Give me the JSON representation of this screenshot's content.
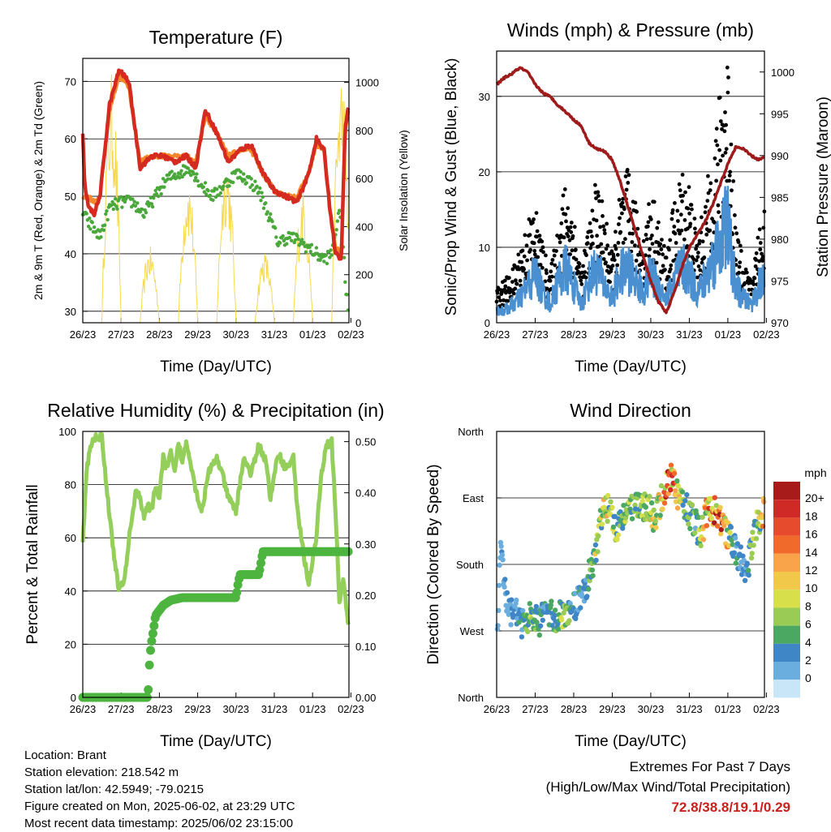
{
  "chart_data": [
    {
      "type": "line",
      "title": "Temperature (F)",
      "xlabel": "Time (Day/UTC)",
      "ylabel": "2m & 9m T (Red, Orange) & 2m Td (Green)",
      "y2label": "Solar Insolation (Yellow)",
      "x_ticks": [
        "26/23",
        "27/23",
        "28/23",
        "29/23",
        "30/23",
        "31/23",
        "01/23",
        "02/23"
      ],
      "ylim": [
        28,
        74
      ],
      "y_ticks": [
        30,
        40,
        50,
        60,
        70
      ],
      "y2lim": [
        0,
        1100
      ],
      "y2_ticks": [
        0,
        200,
        400,
        600,
        800,
        1000
      ],
      "grid": true,
      "series": [
        {
          "name": "2m T",
          "color": "#d42a20",
          "x": [
            0,
            0.05,
            0.15,
            0.3,
            0.45,
            0.7,
            0.95,
            1.2,
            1.5,
            1.8,
            2.1,
            2.4,
            2.7,
            2.95,
            3.2,
            3.5,
            3.8,
            4.1,
            4.4,
            4.7,
            5.0,
            5.3,
            5.6,
            5.9,
            6.1,
            6.3,
            6.45,
            6.6,
            6.75,
            6.85,
            6.95
          ],
          "y": [
            61,
            52,
            48,
            47,
            50,
            66,
            72,
            70,
            55,
            57,
            57,
            56,
            57,
            55,
            65,
            61,
            56,
            58,
            59,
            54,
            51,
            50,
            49,
            54,
            60,
            58,
            48,
            40,
            39,
            62,
            66
          ]
        },
        {
          "name": "9m T",
          "color": "#f5872a",
          "x": [
            0,
            0.15,
            0.3,
            0.45,
            0.7,
            0.95,
            1.2,
            1.5,
            1.8,
            2.1,
            2.4,
            2.7,
            2.95,
            3.2,
            3.5,
            3.8,
            4.1,
            4.4,
            4.7,
            5.0,
            5.3,
            5.6,
            5.9,
            6.1,
            6.3,
            6.45,
            6.6,
            6.75,
            6.85,
            6.95
          ],
          "y": [
            50,
            50,
            49,
            50,
            65,
            71,
            69,
            56,
            57,
            57,
            57,
            57,
            56,
            64,
            61,
            57,
            58,
            58,
            54,
            51,
            50,
            50,
            54,
            59,
            58,
            48,
            41,
            40,
            61,
            65
          ]
        },
        {
          "name": "2m Td",
          "color": "#4aa83a",
          "x": [
            0,
            0.2,
            0.45,
            0.7,
            1.0,
            1.3,
            1.6,
            1.9,
            2.2,
            2.5,
            2.8,
            3.1,
            3.4,
            3.7,
            4.0,
            4.3,
            4.6,
            4.9,
            5.1,
            5.4,
            5.7,
            5.9,
            6.1,
            6.3,
            6.5,
            6.6,
            6.75,
            6.85,
            6.95
          ],
          "y": [
            47,
            45,
            43,
            48,
            49,
            49,
            47,
            50,
            53,
            54,
            55,
            52,
            50,
            52,
            54,
            53,
            51,
            46,
            42,
            43,
            42,
            41,
            40,
            39,
            40,
            44,
            48,
            35,
            29
          ]
        },
        {
          "name": "Solar Insolation",
          "color": "#f5d94a",
          "axis": "y2"
        }
      ]
    },
    {
      "type": "scatter",
      "title": "Winds (mph) & Pressure (mb)",
      "xlabel": "Time (Day/UTC)",
      "ylabel": "Sonic/Prop Wind & Gust (Blue, Black)",
      "y2label": "Station Pressure (Maroon)",
      "x_ticks": [
        "26/23",
        "27/23",
        "28/23",
        "29/23",
        "30/23",
        "31/23",
        "01/23",
        "02/23"
      ],
      "ylim": [
        0,
        36
      ],
      "y_ticks": [
        0,
        10,
        20,
        30
      ],
      "y2lim": [
        970,
        1002.5
      ],
      "y2_ticks": [
        970,
        975,
        980,
        985,
        990,
        995,
        1000
      ],
      "grid": true,
      "series": [
        {
          "name": "Wind",
          "color": "#4a90d0",
          "x": [
            0,
            0.2,
            0.4,
            0.6,
            0.8,
            1.0,
            1.2,
            1.4,
            1.6,
            1.8,
            2.0,
            2.2,
            2.4,
            2.6,
            2.8,
            3.0,
            3.2,
            3.4,
            3.6,
            3.8,
            4.0,
            4.2,
            4.4,
            4.6,
            4.8,
            5.0,
            5.2,
            5.4,
            5.6,
            5.8,
            6.0,
            6.2,
            6.4,
            6.6,
            6.8,
            6.95
          ],
          "y": [
            2,
            2,
            3,
            4,
            6,
            8,
            5,
            3,
            7,
            9,
            6,
            3,
            7,
            9,
            6,
            4,
            8,
            9,
            7,
            5,
            8,
            6,
            4,
            7,
            9,
            8,
            5,
            7,
            10,
            14,
            16,
            6,
            4,
            3,
            6,
            7
          ]
        },
        {
          "name": "Gust",
          "color": "#000000",
          "x": [
            0,
            0.2,
            0.4,
            0.6,
            0.8,
            1.0,
            1.2,
            1.4,
            1.6,
            1.8,
            2.0,
            2.2,
            2.4,
            2.6,
            2.8,
            3.0,
            3.2,
            3.4,
            3.6,
            3.8,
            4.0,
            4.2,
            4.4,
            4.6,
            4.8,
            5.0,
            5.2,
            5.4,
            5.6,
            5.8,
            6.0,
            6.2,
            6.4,
            6.6,
            6.8,
            6.95
          ],
          "y": [
            4,
            5,
            6,
            9,
            12,
            14,
            9,
            6,
            12,
            17,
            13,
            6,
            12,
            17,
            13,
            8,
            15,
            18,
            14,
            10,
            16,
            12,
            8,
            14,
            18,
            17,
            10,
            14,
            21,
            27,
            33,
            12,
            7,
            5,
            11,
            14
          ]
        },
        {
          "name": "Station Pressure",
          "color": "#9e1b1b",
          "axis": "y2",
          "x": [
            0,
            0.2,
            0.4,
            0.6,
            0.8,
            1.0,
            1.2,
            1.4,
            1.6,
            1.8,
            2.0,
            2.2,
            2.4,
            2.6,
            2.8,
            3.0,
            3.2,
            3.4,
            3.6,
            3.8,
            4.0,
            4.2,
            4.4,
            4.6,
            4.8,
            5.0,
            5.2,
            5.4,
            5.6,
            5.8,
            6.0,
            6.2,
            6.4,
            6.6,
            6.8,
            6.95
          ],
          "y": [
            998.5,
            999.3,
            999.8,
            1000.5,
            1000.0,
            998.5,
            997.5,
            997.0,
            996.0,
            995.2,
            994.3,
            993.5,
            991.5,
            990.8,
            990.5,
            989.5,
            987.0,
            984.0,
            981.0,
            978.0,
            975.0,
            972.5,
            971.2,
            973.5,
            976.5,
            979.0,
            980.5,
            982.0,
            984.0,
            986.5,
            989.0,
            991.0,
            990.8,
            990.0,
            989.5,
            989.8
          ]
        }
      ]
    },
    {
      "type": "line",
      "title": "Relative Humidity (%) & Precipitation (in)",
      "xlabel": "Time (Day/UTC)",
      "ylabel": "Percent & Total Rainfall",
      "x_ticks": [
        "26/23",
        "27/23",
        "28/23",
        "29/23",
        "30/23",
        "31/23",
        "01/23",
        "02/23"
      ],
      "ylim": [
        0,
        100
      ],
      "y_ticks": [
        0,
        20,
        40,
        60,
        80,
        100
      ],
      "y2lim": [
        0,
        0.52
      ],
      "y2_ticks": [
        "0.00",
        "0.10",
        "0.20",
        "0.30",
        "0.40",
        "0.50"
      ],
      "grid": true,
      "series": [
        {
          "name": "Relative Humidity",
          "color": "#93cf5a",
          "x": [
            0,
            0.1,
            0.2,
            0.35,
            0.5,
            0.65,
            0.8,
            0.95,
            1.1,
            1.25,
            1.4,
            1.5,
            1.6,
            1.7,
            1.8,
            1.9,
            2.0,
            2.1,
            2.2,
            2.3,
            2.4,
            2.5,
            2.6,
            2.7,
            2.8,
            2.95,
            3.1,
            3.3,
            3.5,
            3.6,
            3.8,
            4.0,
            4.2,
            4.4,
            4.6,
            4.8,
            4.9,
            5.1,
            5.3,
            5.5,
            5.6,
            5.7,
            5.9,
            6.1,
            6.2,
            6.35,
            6.5,
            6.6,
            6.7,
            6.8,
            6.95
          ],
          "y": [
            58,
            85,
            95,
            98,
            98,
            75,
            55,
            40,
            45,
            65,
            78,
            75,
            68,
            72,
            70,
            80,
            75,
            90,
            86,
            92,
            84,
            96,
            88,
            96,
            90,
            78,
            70,
            85,
            90,
            86,
            75,
            70,
            90,
            84,
            95,
            88,
            74,
            92,
            86,
            90,
            72,
            60,
            42,
            60,
            80,
            95,
            96,
            70,
            35,
            45,
            25
          ]
        },
        {
          "name": "Total Precipitation",
          "color": "#4db53f",
          "x": [
            0,
            0.5,
            1.0,
            1.5,
            1.7,
            1.72,
            1.75,
            1.8,
            1.9,
            2.1,
            2.3,
            2.6,
            3.0,
            3.5,
            4.0,
            4.05,
            4.1,
            4.5,
            4.6,
            4.7,
            5.0,
            5.5,
            6.0,
            6.5,
            6.95
          ],
          "y": [
            0,
            0,
            0,
            0,
            0,
            0.03,
            0.08,
            0.11,
            0.16,
            0.18,
            0.19,
            0.195,
            0.195,
            0.195,
            0.195,
            0.22,
            0.24,
            0.24,
            0.24,
            0.285,
            0.285,
            0.285,
            0.285,
            0.285,
            0.285
          ]
        }
      ]
    },
    {
      "type": "scatter",
      "title": "Wind Direction",
      "xlabel": "Time (Day/UTC)",
      "ylabel": "Direction (Colored By Speed)",
      "x_ticks": [
        "26/23",
        "27/23",
        "28/23",
        "29/23",
        "30/23",
        "31/23",
        "01/23",
        "02/23"
      ],
      "y_ticks": [
        "North",
        "West",
        "South",
        "East",
        "North"
      ],
      "ylim": [
        0,
        360
      ],
      "grid": true,
      "legend_title": "mph",
      "legend_labels": [
        "20+",
        "18",
        "16",
        "14",
        "12",
        "10",
        "8",
        "6",
        "4",
        "2",
        "0"
      ],
      "legend_colors": [
        "#a81b1b",
        "#cf2a26",
        "#e64b2e",
        "#f06a2c",
        "#f9a34a",
        "#f2c84b",
        "#d7df4a",
        "#9acb55",
        "#4aa862",
        "#3f86c6",
        "#6aaee0",
        "#c9e6f8"
      ],
      "series": [
        {
          "name": "Direction",
          "x": [
            0,
            0.1,
            0.3,
            0.5,
            0.7,
            0.9,
            1.1,
            1.3,
            1.5,
            1.7,
            1.9,
            2.1,
            2.3,
            2.5,
            2.7,
            2.9,
            3.1,
            3.3,
            3.5,
            3.7,
            3.9,
            4.1,
            4.3,
            4.5,
            4.7,
            4.9,
            5.1,
            5.3,
            5.5,
            5.7,
            5.9,
            6.1,
            6.3,
            6.5,
            6.7,
            6.9
          ],
          "y": [
            60,
            200,
            110,
            120,
            95,
            110,
            100,
            120,
            105,
            115,
            110,
            130,
            150,
            180,
            240,
            260,
            230,
            250,
            255,
            260,
            260,
            240,
            270,
            300,
            275,
            260,
            240,
            220,
            260,
            250,
            230,
            210,
            190,
            170,
            230,
            250
          ],
          "speed": [
            2,
            3,
            3,
            4,
            6,
            8,
            5,
            4,
            6,
            8,
            6,
            4,
            5,
            8,
            11,
            10,
            8,
            9,
            8,
            7,
            10,
            12,
            14,
            20,
            12,
            8,
            6,
            8,
            16,
            19,
            20,
            5,
            4,
            3,
            10,
            12
          ]
        }
      ]
    }
  ],
  "info": {
    "location": "Location: Brant",
    "elevation": "Station elevation: 218.542 m",
    "latlon": "Station lat/lon: 42.5949; -79.0215",
    "created": "Figure created on Mon, 2025-06-02, at 23:29 UTC",
    "recent": "Most recent data timestamp: 2025/06/02 23:15:00"
  },
  "extremes": {
    "title": "Extremes For Past 7 Days",
    "subtitle": "(High/Low/Max Wind/Total Precipitation)",
    "values": "72.8/38.8/19.1/0.29"
  }
}
